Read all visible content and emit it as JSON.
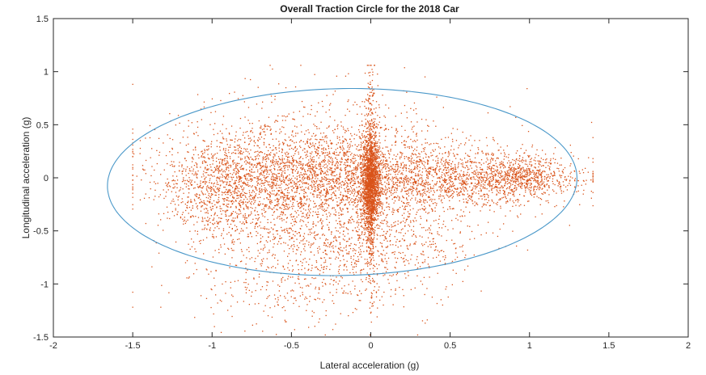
{
  "chart_data": {
    "type": "scatter",
    "title": "Overall Traction Circle for the 2018 Car",
    "xlabel": "Lateral acceleration (g)",
    "ylabel": "Longitudinal acceleration (g)",
    "xlim": [
      -2,
      2
    ],
    "ylim": [
      -1.5,
      1.5
    ],
    "xticks": [
      "-2",
      "-1.5",
      "-1",
      "-0.5",
      "0",
      "0.5",
      "1",
      "1.5",
      "2"
    ],
    "yticks": [
      "-1.5",
      "-1",
      "-0.5",
      "0",
      "0.5",
      "1",
      "1.5"
    ],
    "grid": false,
    "box": true,
    "marker_color": "#d95319",
    "fit_color": "#4a98c9",
    "series": [
      {
        "type": "scatter",
        "point_count_approx": 15000,
        "clusters": [
          {
            "center": [
              0.0,
              -0.05
            ],
            "spread": [
              0.03,
              0.22
            ],
            "weight": 0.16
          },
          {
            "center": [
              0.0,
              -0.05
            ],
            "spread": [
              0.015,
              0.5
            ],
            "weight": 0.06
          },
          {
            "center": [
              -0.4,
              0.0
            ],
            "spread": [
              0.38,
              0.2
            ],
            "weight": 0.2
          },
          {
            "center": [
              0.5,
              -0.02
            ],
            "spread": [
              0.35,
              0.14
            ],
            "weight": 0.14
          },
          {
            "center": [
              0.95,
              0.0
            ],
            "spread": [
              0.18,
              0.1
            ],
            "weight": 0.07
          },
          {
            "center": [
              -0.95,
              -0.15
            ],
            "spread": [
              0.2,
              0.25
            ],
            "weight": 0.08
          },
          {
            "center": [
              -0.3,
              0.2
            ],
            "spread": [
              0.5,
              0.28
            ],
            "weight": 0.12
          },
          {
            "center": [
              -0.3,
              -0.45
            ],
            "spread": [
              0.4,
              0.3
            ],
            "weight": 0.09
          },
          {
            "center": [
              -0.5,
              -1.0
            ],
            "spread": [
              0.35,
              0.2
            ],
            "weight": 0.03
          },
          {
            "center": [
              0.1,
              -0.6
            ],
            "spread": [
              0.35,
              0.25
            ],
            "weight": 0.05
          }
        ]
      },
      {
        "type": "ellipse",
        "center": [
          -0.18,
          -0.04
        ],
        "semi_axes": [
          1.48,
          0.88
        ],
        "rotation_deg": 2.2
      }
    ]
  }
}
